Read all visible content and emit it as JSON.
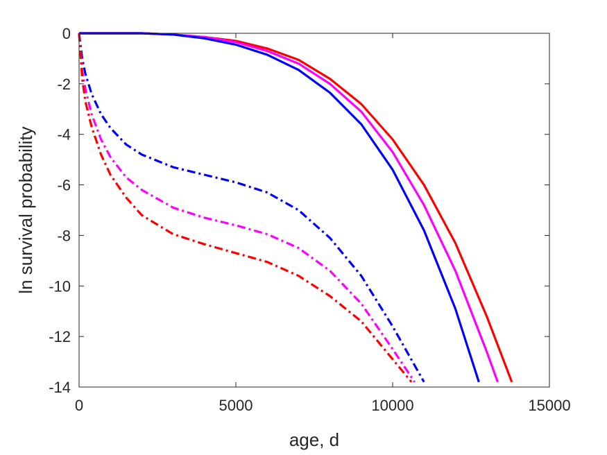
{
  "chart_data": {
    "type": "line",
    "title": "",
    "xlabel": "age, d",
    "ylabel": "ln survival probability",
    "xlim": [
      0,
      15000
    ],
    "ylim": [
      -14,
      0
    ],
    "xticks": [
      0,
      5000,
      10000,
      15000
    ],
    "xtick_labels": [
      "0",
      "5000",
      "10000",
      "15000"
    ],
    "yticks": [
      0,
      -2,
      -4,
      -6,
      -8,
      -10,
      -12,
      -14
    ],
    "ytick_labels": [
      "0",
      "-2",
      "-4",
      "-6",
      "-8",
      "-10",
      "-12",
      "-14"
    ],
    "grid": false,
    "legend": "none",
    "series": [
      {
        "color": "#ff0000",
        "style": "solid",
        "x": [
          0,
          1000,
          2000,
          3000,
          4000,
          5000,
          6000,
          7000,
          8000,
          9000,
          10000,
          11000,
          12000,
          13000,
          13800
        ],
        "y": [
          0,
          0,
          0,
          -0.05,
          -0.15,
          -0.3,
          -0.6,
          -1.05,
          -1.8,
          -2.8,
          -4.2,
          -6.0,
          -8.3,
          -11.2,
          -13.8
        ]
      },
      {
        "color": "#ff00ff",
        "style": "solid",
        "x": [
          0,
          1000,
          2000,
          3000,
          4000,
          5000,
          6000,
          7000,
          8000,
          9000,
          10000,
          11000,
          12000,
          13000,
          13350
        ],
        "y": [
          0,
          0,
          0,
          -0.05,
          -0.15,
          -0.35,
          -0.7,
          -1.2,
          -2.0,
          -3.1,
          -4.7,
          -6.8,
          -9.4,
          -12.6,
          -13.8
        ]
      },
      {
        "color": "#0000ff",
        "style": "solid",
        "x": [
          0,
          1000,
          2000,
          3000,
          4000,
          5000,
          6000,
          7000,
          8000,
          9000,
          10000,
          11000,
          12000,
          12750
        ],
        "y": [
          0,
          0,
          0,
          -0.05,
          -0.2,
          -0.45,
          -0.85,
          -1.45,
          -2.35,
          -3.6,
          -5.4,
          -7.8,
          -10.9,
          -13.8
        ]
      },
      {
        "color": "#0000ff",
        "style": "dashdot",
        "x": [
          0,
          100,
          200,
          400,
          700,
          1000,
          1500,
          2000,
          3000,
          4000,
          5000,
          6000,
          7000,
          8000,
          9000,
          10000,
          11000
        ],
        "y": [
          0,
          -1.0,
          -1.6,
          -2.4,
          -3.2,
          -3.75,
          -4.4,
          -4.8,
          -5.3,
          -5.6,
          -5.9,
          -6.3,
          -7.0,
          -8.1,
          -9.6,
          -11.6,
          -13.8
        ]
      },
      {
        "color": "#ff00ff",
        "style": "dashdot",
        "x": [
          0,
          100,
          200,
          400,
          700,
          1000,
          1500,
          2000,
          3000,
          4000,
          5000,
          6000,
          7000,
          8000,
          9000,
          10000,
          10700
        ],
        "y": [
          0,
          -1.5,
          -2.2,
          -3.2,
          -4.2,
          -4.9,
          -5.7,
          -6.2,
          -6.9,
          -7.3,
          -7.6,
          -7.95,
          -8.5,
          -9.4,
          -10.7,
          -12.5,
          -13.8
        ]
      },
      {
        "color": "#ff0000",
        "style": "dashdot",
        "x": [
          0,
          100,
          200,
          400,
          700,
          1000,
          1500,
          2000,
          3000,
          4000,
          5000,
          6000,
          7000,
          8000,
          9000,
          10000,
          10600
        ],
        "y": [
          0,
          -1.8,
          -2.7,
          -3.7,
          -4.8,
          -5.6,
          -6.5,
          -7.2,
          -7.95,
          -8.35,
          -8.7,
          -9.05,
          -9.6,
          -10.4,
          -11.4,
          -12.9,
          -13.8
        ]
      }
    ]
  }
}
